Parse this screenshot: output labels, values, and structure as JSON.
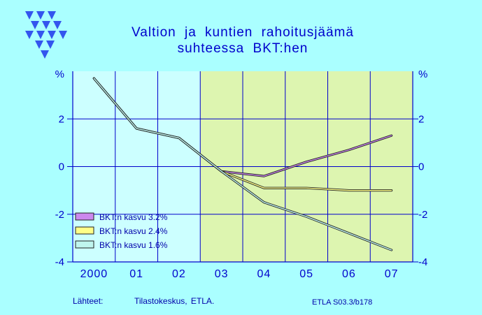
{
  "title_line1": "Valtion ja kuntien rahoitusjäämä",
  "title_line2": "suhteessa BKT:hen",
  "footer": {
    "source_label": "Lähteet:",
    "source_text": "Tilastokeskus, ETLA.",
    "code": "ETLA S03.3/b178"
  },
  "logo": "etla-triangles-logo",
  "colors": {
    "background": "#aaffff",
    "history_band": "#ccffff",
    "forecast_band": "#ddf5b0",
    "axis": "#0000cc",
    "series_3_2": "#cc88ee",
    "series_2_4": "#ffff88",
    "series_1_6": "#bff5ee"
  },
  "chart_data": {
    "type": "line",
    "title": "Valtion ja kuntien rahoitusjäämä suhteessa BKT:hen",
    "ylabel": "%",
    "ylim": [
      -4,
      4
    ],
    "yticks": [
      -4,
      -2,
      0,
      2
    ],
    "ytick_labels": [
      "-4",
      "-2",
      "0",
      "2"
    ],
    "categories": [
      "2000",
      "01",
      "02",
      "03",
      "04",
      "05",
      "06",
      "07"
    ],
    "forecast_from": "03",
    "grid": true,
    "legend_position": "bottom-left",
    "series": [
      {
        "name": "BKT:n kasvu 3.2%",
        "color_key": "series_3_2",
        "values": [
          3.7,
          1.6,
          1.2,
          -0.2,
          -0.4,
          0.2,
          0.7,
          1.3
        ]
      },
      {
        "name": "BKT:n kasvu 2.4%",
        "color_key": "series_2_4",
        "values": [
          3.7,
          1.6,
          1.2,
          -0.2,
          -0.9,
          -0.9,
          -1.0,
          -1.0
        ]
      },
      {
        "name": "BKT:n kasvu 1.6%",
        "color_key": "series_1_6",
        "values": [
          3.7,
          1.6,
          1.2,
          -0.2,
          -1.5,
          -2.1,
          -2.8,
          -3.5
        ]
      }
    ]
  }
}
